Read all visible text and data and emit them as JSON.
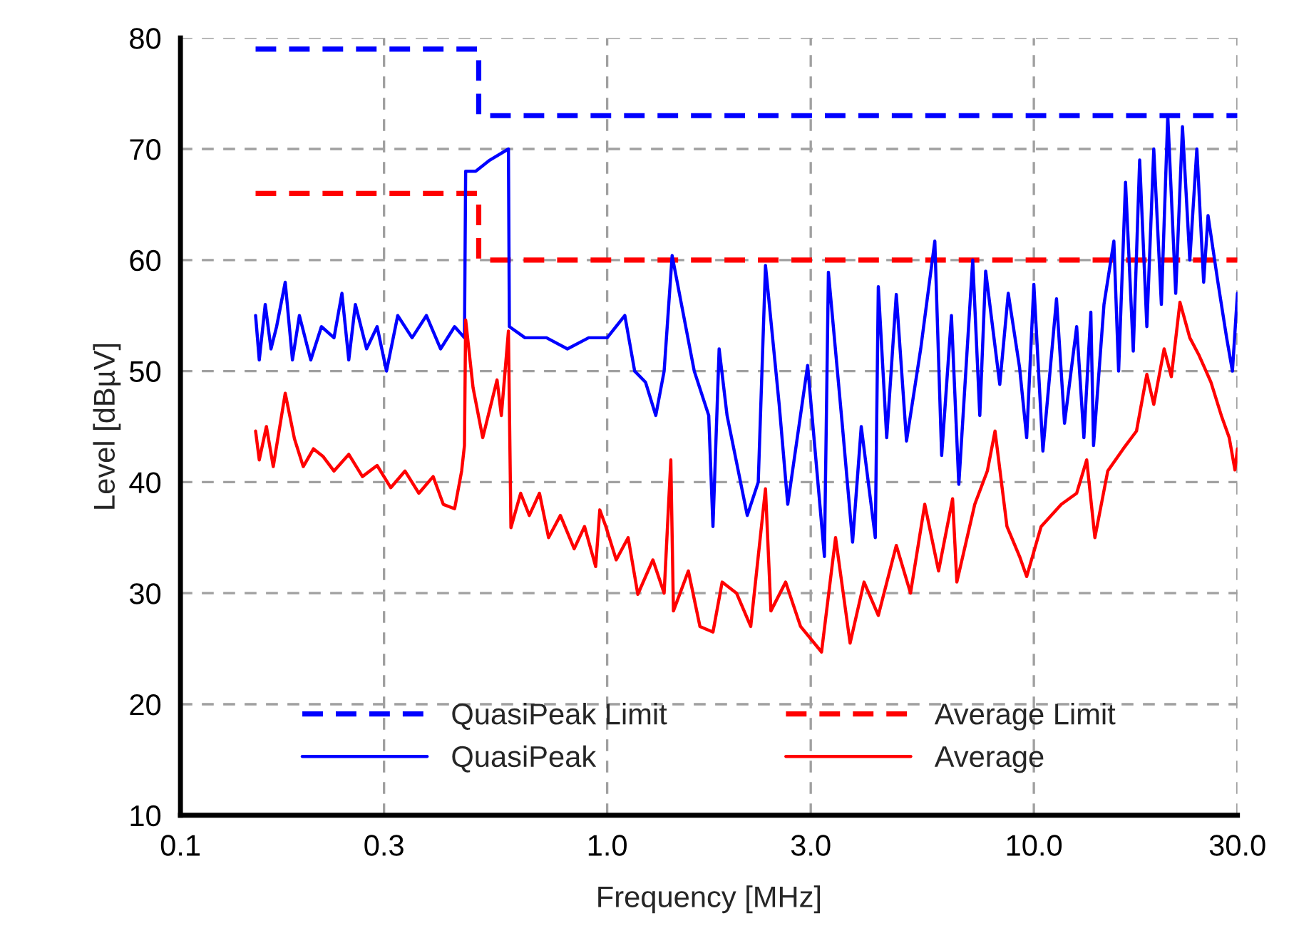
{
  "chart_data": {
    "type": "line",
    "xlabel": "Frequency [MHz]",
    "ylabel": "Level [dBµV]",
    "log": "x",
    "xlim": [
      0.1,
      30
    ],
    "ylim": [
      10,
      80
    ],
    "xticks": [
      0.1,
      0.3,
      {
        "value": 1,
        "label": "1.0"
      },
      {
        "value": 3,
        "label": "3.0"
      },
      {
        "value": 10,
        "label": "10.0"
      },
      {
        "value": 30,
        "label": "30.0"
      }
    ],
    "yticks": [
      10,
      20,
      30,
      40,
      50,
      60,
      70,
      80
    ],
    "grid": true,
    "legend": "bottom",
    "marker": "none",
    "series": [
      {
        "name": "QuasiPeak Limit",
        "color": "#0000ff",
        "line_style": "dashed",
        "x": [
          0.15,
          0.5,
          0.5,
          30
        ],
        "values": [
          79,
          79,
          73,
          73
        ]
      },
      {
        "name": "Average Limit",
        "color": "#ff0000",
        "line_style": "dashed",
        "x": [
          0.15,
          0.5,
          0.5,
          30
        ],
        "values": [
          66,
          66,
          60,
          60
        ]
      },
      {
        "name": "QuasiPeak",
        "color": "#0000ff",
        "line_style": "solid",
        "x": [
          0.15,
          0.153,
          0.158,
          0.163,
          0.168,
          0.176,
          0.183,
          0.19,
          0.202,
          0.214,
          0.229,
          0.239,
          0.248,
          0.257,
          0.273,
          0.289,
          0.304,
          0.323,
          0.349,
          0.377,
          0.407,
          0.439,
          0.463,
          0.466,
          0.492,
          0.531,
          0.587,
          0.59,
          0.642,
          0.721,
          0.807,
          0.905,
          1.0,
          1.1,
          1.16,
          1.23,
          1.3,
          1.36,
          1.42,
          1.6,
          1.73,
          1.77,
          1.83,
          1.91,
          2.13,
          2.26,
          2.35,
          2.53,
          2.65,
          2.95,
          3.23,
          3.3,
          3.56,
          3.76,
          3.94,
          4.25,
          4.32,
          4.52,
          4.76,
          5.03,
          5.43,
          5.86,
          6.08,
          6.41,
          6.67,
          7.19,
          7.47,
          7.71,
          8.32,
          8.71,
          9.26,
          9.62,
          10.0,
          10.5,
          11.3,
          11.8,
          12.6,
          13.1,
          13.6,
          13.8,
          14.6,
          15.4,
          15.8,
          16.4,
          17.1,
          17.7,
          18.4,
          19.1,
          19.9,
          20.6,
          21.5,
          22.3,
          23.2,
          24.1,
          25.0,
          25.6,
          27.0,
          28.3,
          29.2,
          30.0
        ],
        "values": [
          55,
          51,
          56,
          52,
          54,
          58,
          51,
          55,
          51,
          54,
          53,
          57,
          51,
          56,
          52,
          54,
          50,
          55,
          53,
          55,
          52,
          54,
          53,
          68,
          68,
          69,
          70,
          54,
          53,
          53,
          52,
          53,
          53,
          55,
          50,
          49,
          46,
          50,
          60.4,
          50,
          46,
          36,
          52,
          46,
          37,
          40,
          59.5,
          47,
          38,
          50.5,
          33.3,
          58.9,
          45,
          34.6,
          45,
          35,
          57.6,
          44,
          56.9,
          43.7,
          52,
          61.7,
          42.4,
          55,
          39.8,
          60,
          46,
          59,
          48.8,
          57,
          50.3,
          44,
          57.8,
          42.8,
          56.5,
          45.3,
          54,
          44,
          55.3,
          43.3,
          56,
          61.7,
          50,
          67,
          51.8,
          69,
          54,
          70,
          56,
          73,
          57,
          72,
          60,
          70,
          58,
          64,
          58,
          53,
          50,
          57
        ]
      },
      {
        "name": "Average",
        "color": "#ff0000",
        "line_style": "solid",
        "x": [
          0.15,
          0.153,
          0.159,
          0.165,
          0.176,
          0.185,
          0.194,
          0.205,
          0.216,
          0.229,
          0.248,
          0.267,
          0.289,
          0.311,
          0.336,
          0.362,
          0.391,
          0.413,
          0.439,
          0.456,
          0.463,
          0.466,
          0.485,
          0.511,
          0.552,
          0.565,
          0.587,
          0.595,
          0.627,
          0.657,
          0.694,
          0.729,
          0.777,
          0.837,
          0.885,
          0.94,
          0.961,
          0.993,
          1.05,
          1.12,
          1.18,
          1.28,
          1.36,
          1.41,
          1.43,
          1.55,
          1.65,
          1.77,
          1.86,
          2.01,
          2.17,
          2.35,
          2.42,
          2.62,
          2.84,
          3.18,
          3.43,
          3.71,
          4.0,
          4.32,
          4.76,
          5.14,
          5.55,
          5.98,
          6.45,
          6.6,
          7.27,
          7.78,
          8.11,
          8.65,
          9.26,
          9.62,
          10.4,
          11.6,
          12.6,
          13.3,
          13.9,
          14.9,
          16.2,
          17.4,
          18.4,
          19.1,
          20.2,
          21.0,
          22.0,
          23.2,
          24.4,
          26.0,
          27.5,
          28.7,
          29.6,
          30.0
        ],
        "values": [
          44.6,
          42,
          45,
          41.4,
          48,
          43.9,
          41.4,
          43,
          42.3,
          41,
          42.5,
          40.5,
          41.5,
          39.5,
          41,
          39,
          40.5,
          38,
          37.6,
          41,
          43.3,
          54.6,
          48.5,
          44,
          49.2,
          46,
          53.6,
          35.9,
          39,
          37,
          39,
          35,
          37,
          34,
          36,
          32.4,
          37.5,
          36,
          33,
          35,
          29.9,
          33,
          30,
          42,
          28.4,
          32,
          27,
          26.5,
          31,
          30,
          27,
          39.4,
          28.4,
          31,
          27,
          24.7,
          35,
          25.5,
          31,
          28,
          34.3,
          30,
          38,
          32,
          38.5,
          31,
          38,
          41,
          44.6,
          36,
          33.3,
          31.5,
          36,
          38,
          39,
          42,
          35,
          41,
          43,
          44.6,
          49.7,
          47,
          52,
          49.5,
          56.2,
          53,
          51.4,
          49,
          46,
          44,
          41.1,
          43
        ]
      }
    ]
  }
}
